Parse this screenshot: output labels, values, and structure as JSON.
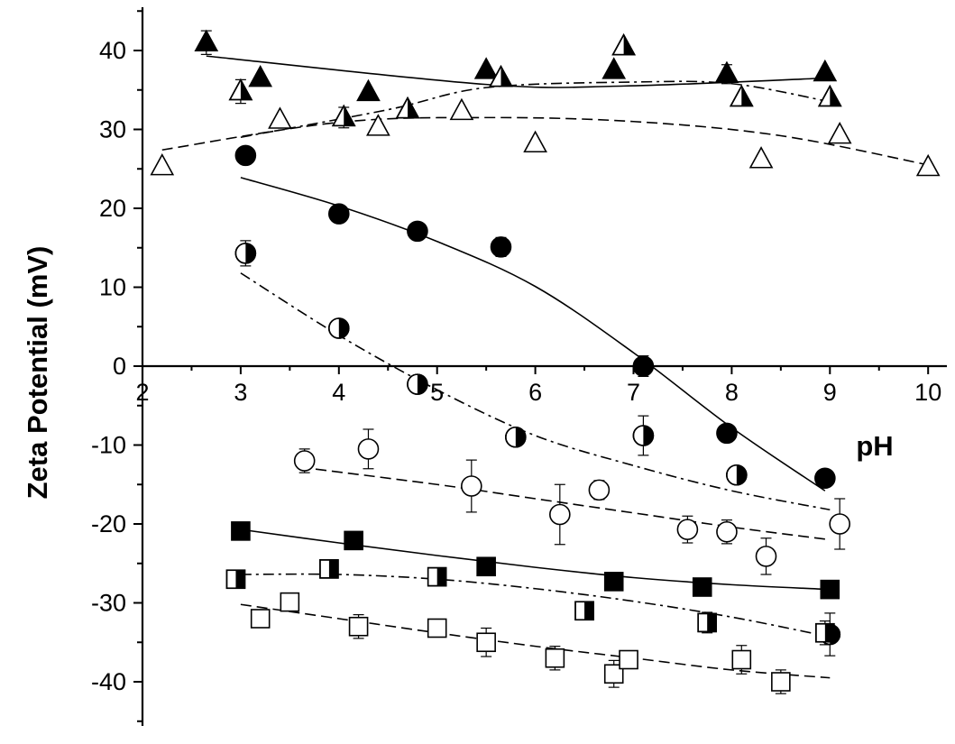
{
  "chart_data": {
    "type": "scatter",
    "title": "",
    "xlabel": "pH",
    "ylabel": "Zeta Potential (mV)",
    "xlim": [
      2,
      10
    ],
    "ylim": [
      -45,
      45
    ],
    "grid": false,
    "x_ticks": [
      "2",
      "3",
      "4",
      "5",
      "6",
      "7",
      "8",
      "9",
      "10"
    ],
    "y_ticks": [
      "-40",
      "-30",
      "-20",
      "-10",
      "0",
      "10",
      "20",
      "30",
      "40"
    ],
    "series": [
      {
        "marker": "triangle-filled",
        "fit": "solid",
        "points": [
          {
            "x": 2.65,
            "y": 41.0,
            "err": 1.5
          },
          {
            "x": 3.2,
            "y": 36.5
          },
          {
            "x": 4.3,
            "y": 34.7
          },
          {
            "x": 4.7,
            "y": 32.5
          },
          {
            "x": 5.5,
            "y": 37.5
          },
          {
            "x": 6.8,
            "y": 37.5
          },
          {
            "x": 7.95,
            "y": 37.0,
            "err": 1.2
          },
          {
            "x": 8.95,
            "y": 37.2
          }
        ],
        "fit_line": [
          [
            2.65,
            39.3
          ],
          [
            5.5,
            35.7
          ],
          [
            6.9,
            35.5
          ],
          [
            8.95,
            36.5
          ]
        ]
      },
      {
        "marker": "triangle-half",
        "fit": "dash-dot",
        "points": [
          {
            "x": 3.0,
            "y": 34.8,
            "err": 1.5
          },
          {
            "x": 4.05,
            "y": 31.5,
            "err": 1.3
          },
          {
            "x": 4.7,
            "y": 32.5
          },
          {
            "x": 5.65,
            "y": 36.5
          },
          {
            "x": 6.9,
            "y": 40.5
          },
          {
            "x": 8.1,
            "y": 34.0
          },
          {
            "x": 9.0,
            "y": 34.0
          }
        ],
        "fit_line": [
          [
            3.0,
            29.0
          ],
          [
            4.5,
            32.5
          ],
          [
            5.5,
            35.3
          ],
          [
            7.0,
            36.0
          ],
          [
            8.0,
            35.8
          ],
          [
            9.0,
            33.5
          ]
        ]
      },
      {
        "marker": "triangle-open",
        "fit": "dashed",
        "points": [
          {
            "x": 2.2,
            "y": 25.3
          },
          {
            "x": 3.4,
            "y": 31.2
          },
          {
            "x": 4.4,
            "y": 30.3
          },
          {
            "x": 5.25,
            "y": 32.3
          },
          {
            "x": 6.0,
            "y": 28.2
          },
          {
            "x": 8.3,
            "y": 26.2
          },
          {
            "x": 9.1,
            "y": 29.3
          },
          {
            "x": 10.0,
            "y": 25.2
          }
        ],
        "fit_line": [
          [
            2.2,
            27.4
          ],
          [
            4.0,
            30.9
          ],
          [
            5.5,
            31.5
          ],
          [
            7.0,
            31.0
          ],
          [
            8.5,
            29.2
          ],
          [
            10.0,
            25.5
          ]
        ]
      },
      {
        "marker": "circle-filled",
        "fit": "solid",
        "points": [
          {
            "x": 3.05,
            "y": 26.7
          },
          {
            "x": 4.0,
            "y": 19.3
          },
          {
            "x": 4.8,
            "y": 17.1
          },
          {
            "x": 5.65,
            "y": 15.1,
            "err": 1.2
          },
          {
            "x": 7.1,
            "y": 0.0,
            "err": 1.3
          },
          {
            "x": 7.95,
            "y": -8.5
          },
          {
            "x": 8.95,
            "y": -14.2
          }
        ],
        "fit_line": [
          [
            3.0,
            23.9
          ],
          [
            4.0,
            20.3
          ],
          [
            5.0,
            15.8
          ],
          [
            6.0,
            10.1
          ],
          [
            7.0,
            1.7
          ],
          [
            8.0,
            -7.8
          ],
          [
            8.95,
            -15.8
          ]
        ]
      },
      {
        "marker": "circle-half",
        "fit": "dash-dot",
        "points": [
          {
            "x": 3.05,
            "y": 14.3,
            "err": 1.6
          },
          {
            "x": 4.0,
            "y": 4.8
          },
          {
            "x": 4.8,
            "y": -2.3
          },
          {
            "x": 5.8,
            "y": -9.0
          },
          {
            "x": 7.1,
            "y": -8.8,
            "err": 2.5
          },
          {
            "x": 8.05,
            "y": -13.8
          },
          {
            "x": 9.0,
            "y": -34.0,
            "err": 2.7
          }
        ],
        "fit_line": [
          [
            3.0,
            11.8
          ],
          [
            4.0,
            3.9
          ],
          [
            5.0,
            -3.0
          ],
          [
            6.0,
            -8.8
          ],
          [
            7.0,
            -12.6
          ],
          [
            8.0,
            -15.8
          ],
          [
            9.0,
            -18.2
          ]
        ]
      },
      {
        "marker": "circle-open",
        "fit": "dashed",
        "points": [
          {
            "x": 3.65,
            "y": -12.0,
            "err": 1.5
          },
          {
            "x": 4.3,
            "y": -10.5,
            "err": 2.5
          },
          {
            "x": 5.35,
            "y": -15.2,
            "err": 3.3
          },
          {
            "x": 6.25,
            "y": -18.8,
            "err": 3.8
          },
          {
            "x": 6.65,
            "y": -15.7,
            "err": 1.2
          },
          {
            "x": 7.55,
            "y": -20.7,
            "err": 1.7
          },
          {
            "x": 7.95,
            "y": -21.0,
            "err": 1.5
          },
          {
            "x": 8.35,
            "y": -24.1,
            "err": 2.3
          },
          {
            "x": 9.1,
            "y": -20.0,
            "err": 3.2
          }
        ],
        "fit_line": [
          [
            3.6,
            -12.8
          ],
          [
            5.0,
            -15.0
          ],
          [
            6.0,
            -16.8
          ],
          [
            7.0,
            -18.6
          ],
          [
            8.0,
            -20.4
          ],
          [
            9.0,
            -22.0
          ]
        ]
      },
      {
        "marker": "square-filled",
        "fit": "solid",
        "points": [
          {
            "x": 3.0,
            "y": -20.9
          },
          {
            "x": 4.15,
            "y": -22.1
          },
          {
            "x": 5.5,
            "y": -25.4
          },
          {
            "x": 6.8,
            "y": -27.3
          },
          {
            "x": 7.7,
            "y": -28.0
          },
          {
            "x": 9.0,
            "y": -28.3
          }
        ],
        "fit_line": [
          [
            3.0,
            -20.7
          ],
          [
            4.0,
            -22.4
          ],
          [
            5.0,
            -24.0
          ],
          [
            6.0,
            -25.5
          ],
          [
            7.0,
            -26.8
          ],
          [
            8.0,
            -27.7
          ],
          [
            9.0,
            -28.3
          ]
        ]
      },
      {
        "marker": "square-half",
        "fit": "dash-dot",
        "points": [
          {
            "x": 2.95,
            "y": -27.0
          },
          {
            "x": 3.9,
            "y": -25.7
          },
          {
            "x": 5.0,
            "y": -26.7
          },
          {
            "x": 6.5,
            "y": -31.0
          },
          {
            "x": 7.75,
            "y": -32.5,
            "err": 1.3
          },
          {
            "x": 8.95,
            "y": -33.8,
            "err": 1.5
          }
        ],
        "fit_line": [
          [
            3.0,
            -26.4
          ],
          [
            4.0,
            -26.4
          ],
          [
            5.0,
            -27.0
          ],
          [
            6.0,
            -28.2
          ],
          [
            7.0,
            -29.8
          ],
          [
            8.0,
            -31.8
          ],
          [
            9.0,
            -34.3
          ]
        ]
      },
      {
        "marker": "square-open",
        "fit": "dashed",
        "points": [
          {
            "x": 3.2,
            "y": -32.0
          },
          {
            "x": 3.5,
            "y": -29.9
          },
          {
            "x": 4.2,
            "y": -33.0,
            "err": 1.5
          },
          {
            "x": 5.0,
            "y": -33.2
          },
          {
            "x": 5.5,
            "y": -35.0,
            "err": 1.8
          },
          {
            "x": 6.2,
            "y": -37.0,
            "err": 1.5
          },
          {
            "x": 6.8,
            "y": -39.0,
            "err": 1.7
          },
          {
            "x": 6.95,
            "y": -37.2
          },
          {
            "x": 8.1,
            "y": -37.2,
            "err": 1.8
          },
          {
            "x": 8.5,
            "y": -40.0,
            "err": 1.5
          }
        ],
        "fit_line": [
          [
            3.0,
            -30.2
          ],
          [
            4.0,
            -32.0
          ],
          [
            5.0,
            -33.8
          ],
          [
            6.0,
            -35.5
          ],
          [
            7.0,
            -37.0
          ],
          [
            8.0,
            -38.5
          ],
          [
            9.0,
            -39.5
          ]
        ]
      }
    ]
  }
}
